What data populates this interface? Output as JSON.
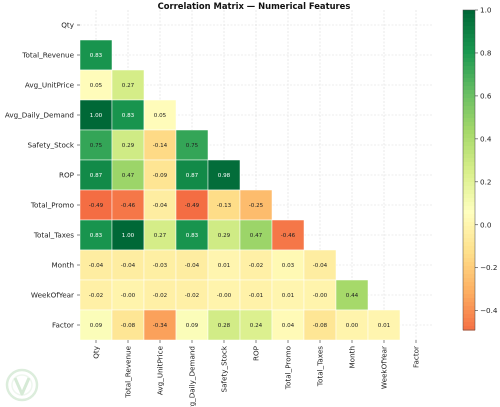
{
  "chart_data": {
    "type": "heatmap",
    "title": "Correlation Matrix — Numerical Features",
    "features": [
      "Qty",
      "Total_Revenue",
      "Avg_UnitPrice",
      "Avg_Daily_Demand",
      "Safety_Stock",
      "ROP",
      "Total_Promo",
      "Total_Taxes",
      "Month",
      "WeekOfYear",
      "Factor"
    ],
    "mask": "upper-triangle-including-diagonal",
    "values": [
      [],
      [
        0.83
      ],
      [
        0.05,
        0.27
      ],
      [
        1.0,
        0.83,
        0.05
      ],
      [
        0.75,
        0.29,
        -0.14,
        0.75
      ],
      [
        0.87,
        0.47,
        -0.09,
        0.87,
        0.98
      ],
      [
        -0.49,
        -0.46,
        -0.04,
        -0.49,
        -0.13,
        -0.25
      ],
      [
        0.83,
        1.0,
        0.27,
        0.83,
        0.29,
        0.47,
        -0.46
      ],
      [
        -0.04,
        -0.04,
        -0.03,
        -0.04,
        0.01,
        -0.02,
        0.03,
        -0.04
      ],
      [
        -0.02,
        -0.0,
        -0.02,
        -0.02,
        -0.0,
        -0.01,
        0.01,
        -0.0,
        0.44
      ],
      [
        0.09,
        -0.08,
        -0.34,
        0.09,
        0.28,
        0.24,
        0.04,
        -0.08,
        0.0,
        0.01
      ]
    ],
    "value_labels": [
      [],
      [
        "0.83"
      ],
      [
        "0.05",
        "0.27"
      ],
      [
        "1.00",
        "0.83",
        "0.05"
      ],
      [
        "0.75",
        "0.29",
        "-0.14",
        "0.75"
      ],
      [
        "0.87",
        "0.47",
        "-0.09",
        "0.87",
        "0.98"
      ],
      [
        "-0.49",
        "-0.46",
        "-0.04",
        "-0.49",
        "-0.13",
        "-0.25"
      ],
      [
        "0.83",
        "1.00",
        "0.27",
        "0.83",
        "0.29",
        "0.47",
        "-0.46"
      ],
      [
        "-0.04",
        "-0.04",
        "-0.03",
        "-0.04",
        "0.01",
        "-0.02",
        "0.03",
        "-0.04"
      ],
      [
        "-0.02",
        "-0.00",
        "-0.02",
        "-0.02",
        "-0.00",
        "-0.01",
        "0.01",
        "-0.00",
        "0.44"
      ],
      [
        "0.09",
        "-0.08",
        "-0.34",
        "0.09",
        "0.28",
        "0.24",
        "0.04",
        "-0.08",
        "0.00",
        "0.01"
      ]
    ],
    "colorbar": {
      "colormap": "RdYlGn",
      "vmin": -0.49,
      "vmax": 1.0,
      "ticks": [
        1.0,
        0.8,
        0.6,
        0.4,
        0.2,
        0.0,
        -0.2,
        -0.4
      ],
      "tick_labels": [
        "1.0",
        "0.8",
        "0.6",
        "0.4",
        "0.2",
        "0.0",
        "−0.2",
        "−0.4"
      ]
    },
    "grid": true,
    "legend": "colorbar-right"
  }
}
